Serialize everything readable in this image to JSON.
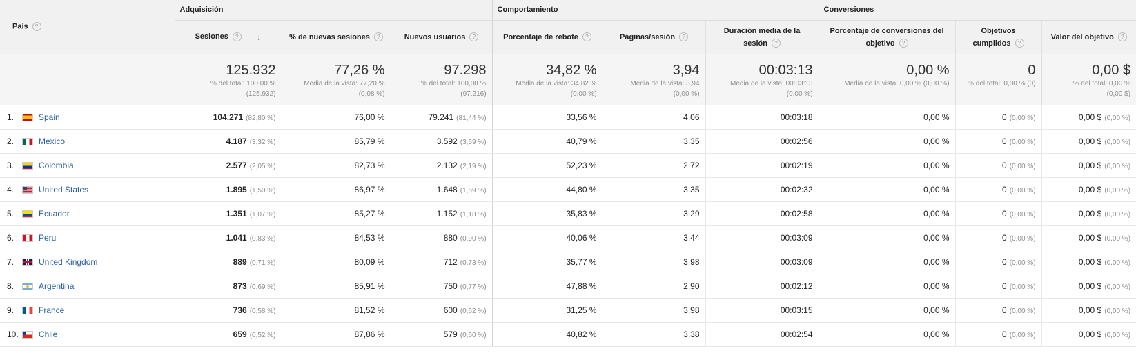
{
  "header": {
    "pais": "País",
    "groups": [
      "Adquisición",
      "Comportamiento",
      "Conversiones"
    ],
    "sort_icon": "arrow-down-icon",
    "help_icon": "help-icon",
    "help_glyph": "?",
    "columns": [
      "Sesiones",
      "% de nuevas sesiones",
      "Nuevos usuarios",
      "Porcentaje de rebote",
      "Páginas/sesión",
      "Duración media de la sesión",
      "Porcentaje de conversiones del objetivo",
      "Objetivos cumplidos",
      "Valor del objetivo"
    ]
  },
  "totals": [
    {
      "value": "125.932",
      "sub1": "% del total: 100,00 %",
      "sub2": "(125.932)"
    },
    {
      "value": "77,26 %",
      "sub1": "Media de la vista: 77,20 %",
      "sub2": "(0,08 %)"
    },
    {
      "value": "97.298",
      "sub1": "% del total: 100,08 %",
      "sub2": "(97.216)"
    },
    {
      "value": "34,82 %",
      "sub1": "Media de la vista: 34,82 %",
      "sub2": "(0,00 %)"
    },
    {
      "value": "3,94",
      "sub1": "Media de la vista: 3,94",
      "sub2": "(0,00 %)"
    },
    {
      "value": "00:03:13",
      "sub1": "Media de la vista: 00:03:13",
      "sub2": "(0,00 %)"
    },
    {
      "value": "0,00 %",
      "sub1": "Media de la vista: 0,00 % (0,00 %)",
      "sub2": ""
    },
    {
      "value": "0",
      "sub1": "% del total: 0,00 % (0)",
      "sub2": ""
    },
    {
      "value": "0,00 $",
      "sub1": "% del total: 0,00 %",
      "sub2": "(0,00 $)"
    }
  ],
  "rows": [
    {
      "idx": "1.",
      "country": "Spain",
      "flag": "spain-flag-icon",
      "sessions": "104.271",
      "sessions_pct": "(82,80 %)",
      "new_pct": "76,00 %",
      "new_users": "79.241",
      "new_users_pct": "(81,44 %)",
      "bounce": "33,56 %",
      "pages": "4,06",
      "duration": "00:03:18",
      "conv": "0,00 %",
      "goals": "0",
      "goals_pct": "(0,00 %)",
      "value": "0,00 $",
      "value_pct": "(0,00 %)"
    },
    {
      "idx": "2.",
      "country": "Mexico",
      "flag": "mexico-flag-icon",
      "sessions": "4.187",
      "sessions_pct": "(3,32 %)",
      "new_pct": "85,79 %",
      "new_users": "3.592",
      "new_users_pct": "(3,69 %)",
      "bounce": "40,79 %",
      "pages": "3,35",
      "duration": "00:02:56",
      "conv": "0,00 %",
      "goals": "0",
      "goals_pct": "(0,00 %)",
      "value": "0,00 $",
      "value_pct": "(0,00 %)"
    },
    {
      "idx": "3.",
      "country": "Colombia",
      "flag": "colombia-flag-icon",
      "sessions": "2.577",
      "sessions_pct": "(2,05 %)",
      "new_pct": "82,73 %",
      "new_users": "2.132",
      "new_users_pct": "(2,19 %)",
      "bounce": "52,23 %",
      "pages": "2,72",
      "duration": "00:02:19",
      "conv": "0,00 %",
      "goals": "0",
      "goals_pct": "(0,00 %)",
      "value": "0,00 $",
      "value_pct": "(0,00 %)"
    },
    {
      "idx": "4.",
      "country": "United States",
      "flag": "united-states-flag-icon",
      "sessions": "1.895",
      "sessions_pct": "(1,50 %)",
      "new_pct": "86,97 %",
      "new_users": "1.648",
      "new_users_pct": "(1,69 %)",
      "bounce": "44,80 %",
      "pages": "3,35",
      "duration": "00:02:32",
      "conv": "0,00 %",
      "goals": "0",
      "goals_pct": "(0,00 %)",
      "value": "0,00 $",
      "value_pct": "(0,00 %)"
    },
    {
      "idx": "5.",
      "country": "Ecuador",
      "flag": "ecuador-flag-icon",
      "sessions": "1.351",
      "sessions_pct": "(1,07 %)",
      "new_pct": "85,27 %",
      "new_users": "1.152",
      "new_users_pct": "(1,18 %)",
      "bounce": "35,83 %",
      "pages": "3,29",
      "duration": "00:02:58",
      "conv": "0,00 %",
      "goals": "0",
      "goals_pct": "(0,00 %)",
      "value": "0,00 $",
      "value_pct": "(0,00 %)"
    },
    {
      "idx": "6.",
      "country": "Peru",
      "flag": "peru-flag-icon",
      "sessions": "1.041",
      "sessions_pct": "(0,83 %)",
      "new_pct": "84,53 %",
      "new_users": "880",
      "new_users_pct": "(0,90 %)",
      "bounce": "40,06 %",
      "pages": "3,44",
      "duration": "00:03:09",
      "conv": "0,00 %",
      "goals": "0",
      "goals_pct": "(0,00 %)",
      "value": "0,00 $",
      "value_pct": "(0,00 %)"
    },
    {
      "idx": "7.",
      "country": "United Kingdom",
      "flag": "united-kingdom-flag-icon",
      "sessions": "889",
      "sessions_pct": "(0,71 %)",
      "new_pct": "80,09 %",
      "new_users": "712",
      "new_users_pct": "(0,73 %)",
      "bounce": "35,77 %",
      "pages": "3,98",
      "duration": "00:03:09",
      "conv": "0,00 %",
      "goals": "0",
      "goals_pct": "(0,00 %)",
      "value": "0,00 $",
      "value_pct": "(0,00 %)"
    },
    {
      "idx": "8.",
      "country": "Argentina",
      "flag": "argentina-flag-icon",
      "sessions": "873",
      "sessions_pct": "(0,69 %)",
      "new_pct": "85,91 %",
      "new_users": "750",
      "new_users_pct": "(0,77 %)",
      "bounce": "47,88 %",
      "pages": "2,90",
      "duration": "00:02:12",
      "conv": "0,00 %",
      "goals": "0",
      "goals_pct": "(0,00 %)",
      "value": "0,00 $",
      "value_pct": "(0,00 %)"
    },
    {
      "idx": "9.",
      "country": "France",
      "flag": "france-flag-icon",
      "sessions": "736",
      "sessions_pct": "(0,58 %)",
      "new_pct": "81,52 %",
      "new_users": "600",
      "new_users_pct": "(0,62 %)",
      "bounce": "31,25 %",
      "pages": "3,98",
      "duration": "00:03:15",
      "conv": "0,00 %",
      "goals": "0",
      "goals_pct": "(0,00 %)",
      "value": "0,00 $",
      "value_pct": "(0,00 %)"
    },
    {
      "idx": "10.",
      "country": "Chile",
      "flag": "chile-flag-icon",
      "sessions": "659",
      "sessions_pct": "(0,52 %)",
      "new_pct": "87,86 %",
      "new_users": "579",
      "new_users_pct": "(0,60 %)",
      "bounce": "40,82 %",
      "pages": "3,38",
      "duration": "00:02:54",
      "conv": "0,00 %",
      "goals": "0",
      "goals_pct": "(0,00 %)",
      "value": "0,00 $",
      "value_pct": "(0,00 %)"
    }
  ]
}
